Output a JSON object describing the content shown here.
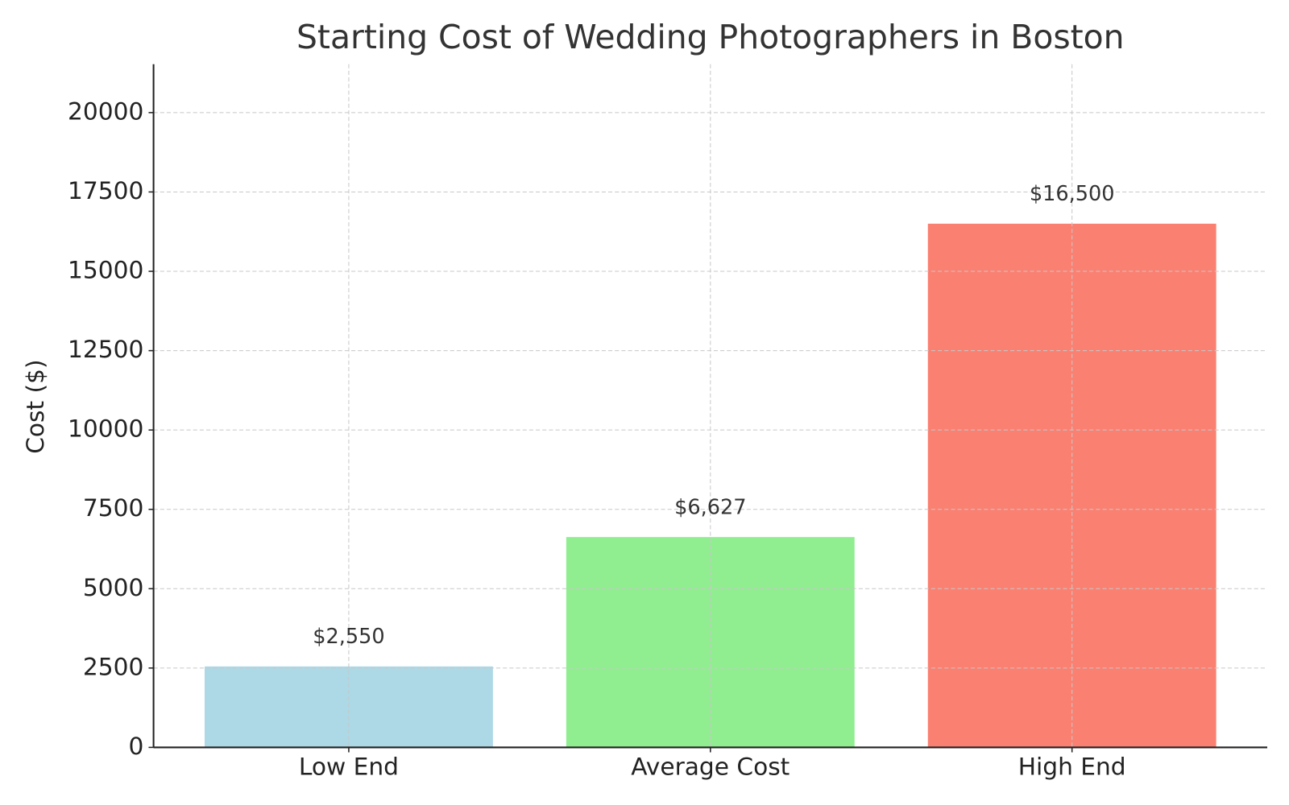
{
  "chart_data": {
    "type": "bar",
    "title": "Starting Cost of Wedding Photographers in Boston",
    "ylabel": "Cost ($)",
    "categories": [
      "Low End",
      "Average Cost",
      "High End"
    ],
    "values": [
      2550,
      6627,
      16500
    ],
    "value_labels": [
      "$2,550",
      "$6,627",
      "$16,500"
    ],
    "colors": [
      "#add8e6",
      "#90ee90",
      "#fa8072"
    ],
    "ylim": [
      0,
      21525
    ],
    "yticks": [
      0,
      2500,
      5000,
      7500,
      10000,
      12500,
      15000,
      17500,
      20000
    ],
    "grid": true
  }
}
